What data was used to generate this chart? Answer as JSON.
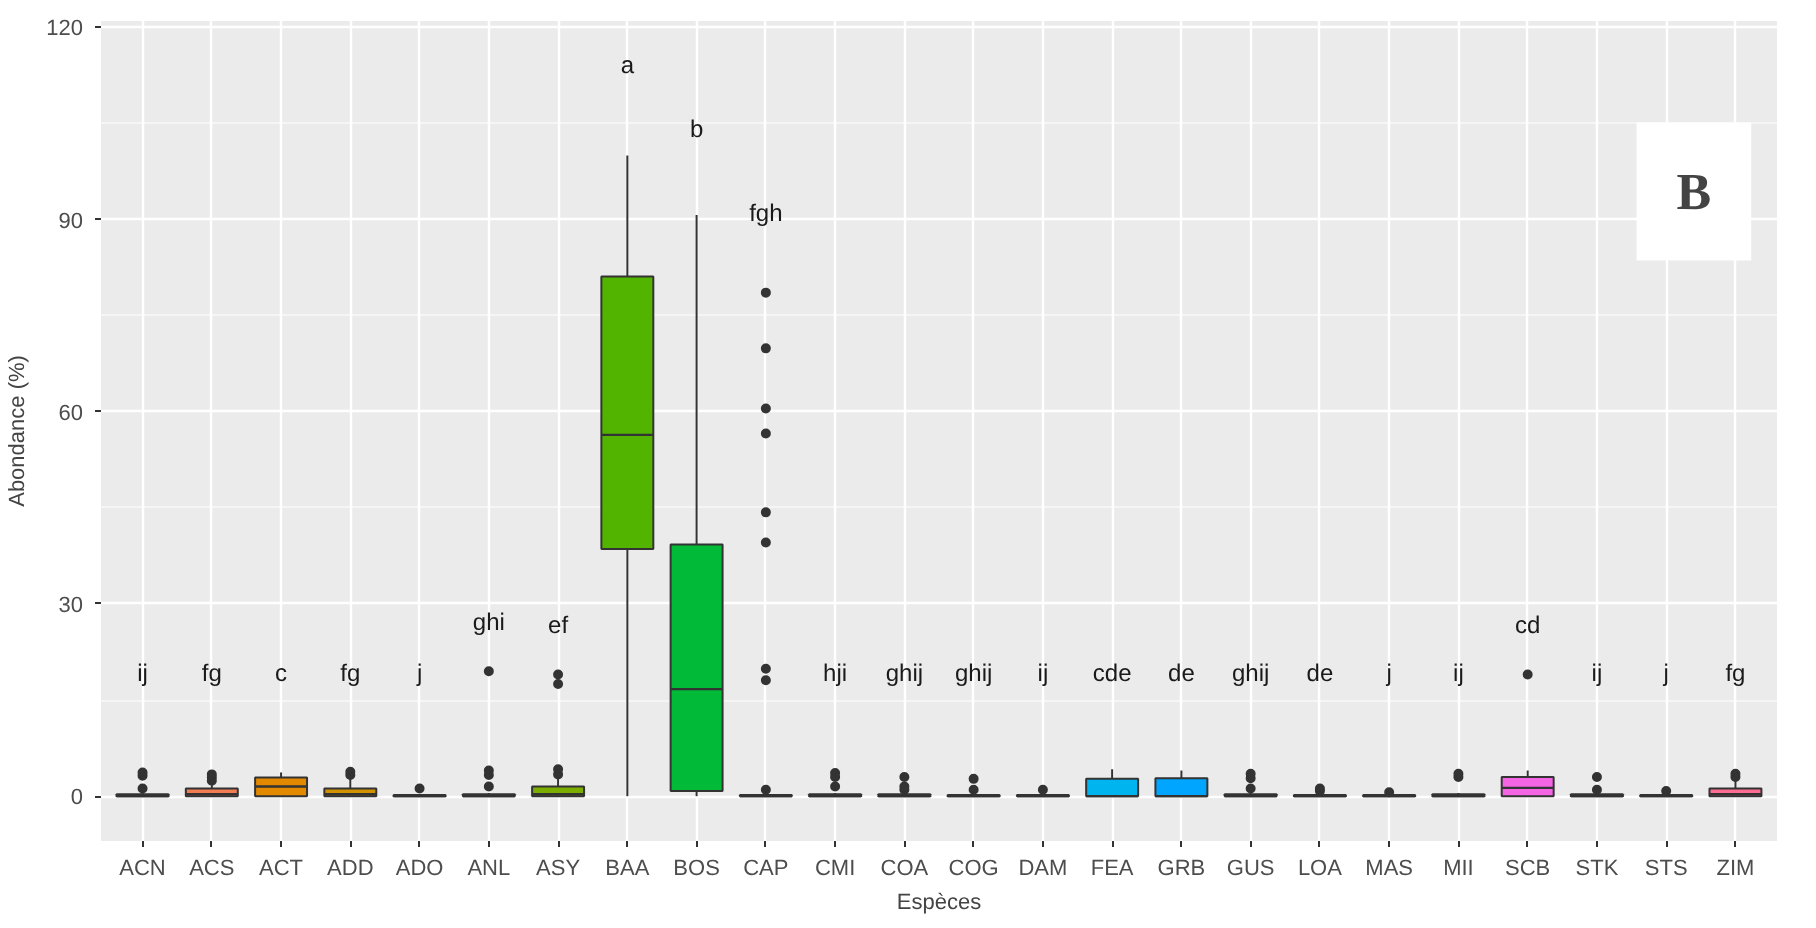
{
  "chart_data": {
    "type": "box",
    "xlabel": "Espèces",
    "ylabel": "Abondance (%)",
    "categories": [
      "ACN",
      "ACS",
      "ACT",
      "ADD",
      "ADO",
      "ANL",
      "ASY",
      "BAA",
      "BOS",
      "CAP",
      "CMI",
      "COA",
      "COG",
      "DAM",
      "FEA",
      "GRB",
      "GUS",
      "LOA",
      "MAS",
      "MII",
      "SCB",
      "STK",
      "STS",
      "ZIM"
    ],
    "colors": [
      "#F8766D",
      "#F27D52",
      "#E38900",
      "#D39200",
      "#C09B00",
      "#AAA300",
      "#7CAE00",
      "#53B400",
      "#00BA38",
      "#00BE67",
      "#00C08B",
      "#00C1A9",
      "#00BFC4",
      "#00BDD6",
      "#00B4EF",
      "#00A5FF",
      "#619CFF",
      "#8F91FF",
      "#B385FF",
      "#C77CFF",
      "#F564E3",
      "#FF61C3",
      "#FF64B0",
      "#FF6C91"
    ],
    "boxes": [
      {
        "low": 0,
        "q1": 0,
        "median": 0,
        "q3": 0.3,
        "high": 0.5,
        "outliers": [
          1.2,
          3.2,
          3.7
        ]
      },
      {
        "low": 0,
        "q1": 0,
        "median": 0.3,
        "q3": 1.2,
        "high": 2,
        "outliers": [
          2.4,
          2.9,
          3.4
        ]
      },
      {
        "low": 0,
        "q1": 0,
        "median": 1.5,
        "q3": 2.9,
        "high": 3.7
      },
      {
        "low": 0,
        "q1": 0,
        "median": 0.3,
        "q3": 1.2,
        "high": 2.7,
        "outliers": [
          3.3,
          3.8
        ]
      },
      {
        "low": 0,
        "q1": 0,
        "median": 0,
        "q3": 0.2,
        "high": 0.3,
        "outliers": [
          1.2
        ]
      },
      {
        "low": 0,
        "q1": 0,
        "median": 0,
        "q3": 0.3,
        "high": 0.5,
        "outliers": [
          1.5,
          3.3,
          4,
          19.5
        ]
      },
      {
        "low": 0,
        "q1": 0,
        "median": 0.3,
        "q3": 1.5,
        "high": 3,
        "outliers": [
          3.4,
          4.2,
          17.5,
          19
        ]
      },
      {
        "low": 0,
        "q1": 38.6,
        "median": 56.4,
        "q3": 81.1,
        "high": 100
      },
      {
        "low": 0,
        "q1": 0.8,
        "median": 16.7,
        "q3": 39.3,
        "high": 90.7
      },
      {
        "low": 0,
        "q1": 0,
        "median": 0,
        "q3": 0.2,
        "high": 0.4,
        "outliers": [
          1,
          18.1,
          19.9,
          39.6,
          44.3,
          56.6,
          60.5,
          69.9,
          78.6
        ]
      },
      {
        "low": 0,
        "q1": 0,
        "median": 0,
        "q3": 0.3,
        "high": 0.5,
        "outliers": [
          1.5,
          3,
          3.6
        ]
      },
      {
        "low": 0,
        "q1": 0,
        "median": 0,
        "q3": 0.3,
        "high": 0.5,
        "outliers": [
          1,
          1.5,
          3
        ]
      },
      {
        "low": 0,
        "q1": 0,
        "median": 0,
        "q3": 0.2,
        "high": 0.4,
        "outliers": [
          1,
          2.7
        ]
      },
      {
        "low": 0,
        "q1": 0,
        "median": 0,
        "q3": 0.2,
        "high": 0.3,
        "outliers": [
          1
        ]
      },
      {
        "low": 0,
        "q1": 0,
        "median": 0,
        "q3": 2.7,
        "high": 4.2
      },
      {
        "low": 0,
        "q1": 0,
        "median": 0,
        "q3": 2.8,
        "high": 4
      },
      {
        "low": 0,
        "q1": 0,
        "median": 0,
        "q3": 0.3,
        "high": 0.5,
        "outliers": [
          1.2,
          2.8,
          3.5
        ]
      },
      {
        "low": 0,
        "q1": 0,
        "median": 0,
        "q3": 0.2,
        "high": 0.3,
        "outliers": [
          0.8,
          1.2
        ]
      },
      {
        "low": 0,
        "q1": 0,
        "median": 0,
        "q3": 0.2,
        "high": 0.3,
        "outliers": [
          0.6
        ]
      },
      {
        "low": 0,
        "q1": 0,
        "median": 0,
        "q3": 0.3,
        "high": 0.5,
        "outliers": [
          3,
          3.5
        ]
      },
      {
        "low": 0,
        "q1": 0,
        "median": 1.3,
        "q3": 3,
        "high": 4,
        "outliers": [
          19
        ]
      },
      {
        "low": 0,
        "q1": 0,
        "median": 0,
        "q3": 0.3,
        "high": 0.5,
        "outliers": [
          1,
          3
        ]
      },
      {
        "low": 0,
        "q1": 0,
        "median": 0,
        "q3": 0.2,
        "high": 0.3,
        "outliers": [
          0.8
        ]
      },
      {
        "low": 0,
        "q1": 0,
        "median": 0.3,
        "q3": 1.2,
        "high": 2.5,
        "outliers": [
          3,
          3.5
        ]
      }
    ],
    "ylim": [
      -7,
      121
    ],
    "yticks": [
      0,
      30,
      60,
      90,
      120
    ],
    "grid": true,
    "annotations": [
      "ij",
      "fg",
      "c",
      "fg",
      "j",
      "ghi",
      "ef",
      "a",
      "b",
      "fgh",
      "hji",
      "ghij",
      "ghij",
      "ij",
      "cde",
      "de",
      "ghij",
      "de",
      "j",
      "ij",
      "cd",
      "ij",
      "j",
      "fg",
      "B"
    ]
  }
}
